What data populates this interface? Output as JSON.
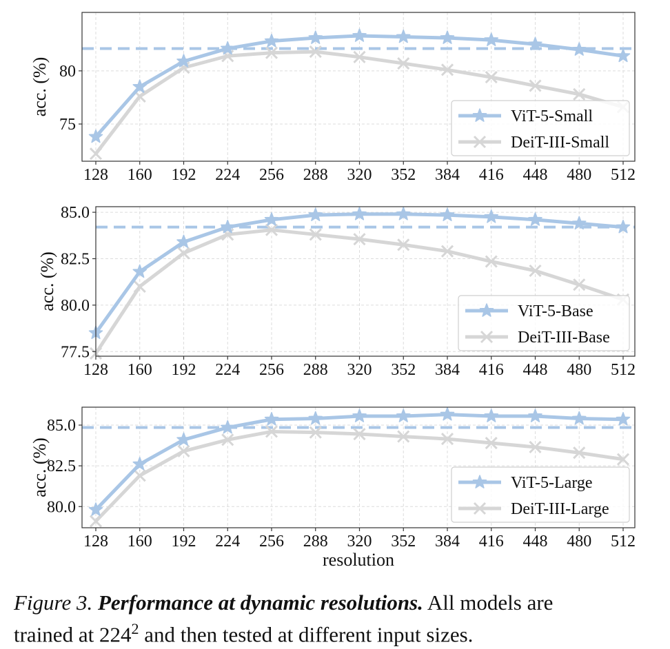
{
  "colors": {
    "vit": "#a9c6e6",
    "deit": "#d6d6d6",
    "baseline": "#a9c6e6",
    "grid": "#dcdcdc",
    "axis": "#333333"
  },
  "chart_data": [
    {
      "type": "line",
      "id": "small",
      "xlabel": "",
      "ylabel": "acc. (%)",
      "x": [
        128,
        160,
        192,
        224,
        256,
        288,
        320,
        352,
        384,
        416,
        448,
        480,
        512
      ],
      "ylim": [
        71.5,
        85.5
      ],
      "yticks": [
        75,
        80
      ],
      "baseline": 82.1,
      "legend_position": "bottom-right",
      "series": [
        {
          "name": "ViT-5-Small",
          "marker": "star",
          "values": [
            73.8,
            78.5,
            80.9,
            82.1,
            82.8,
            83.1,
            83.3,
            83.2,
            83.1,
            82.9,
            82.5,
            82.0,
            81.4
          ]
        },
        {
          "name": "DeiT-III-Small",
          "marker": "x",
          "values": [
            72.2,
            77.6,
            80.3,
            81.4,
            81.7,
            81.8,
            81.3,
            80.7,
            80.1,
            79.4,
            78.6,
            77.8,
            76.6
          ]
        }
      ]
    },
    {
      "type": "line",
      "id": "base",
      "xlabel": "",
      "ylabel": "acc. (%)",
      "x": [
        128,
        160,
        192,
        224,
        256,
        288,
        320,
        352,
        384,
        416,
        448,
        480,
        512
      ],
      "ylim": [
        77.25,
        85.3
      ],
      "yticks": [
        77.5,
        80.0,
        82.5,
        85.0
      ],
      "baseline": 84.2,
      "legend_position": "bottom-right",
      "series": [
        {
          "name": "ViT-5-Base",
          "marker": "star",
          "values": [
            78.5,
            81.8,
            83.4,
            84.2,
            84.6,
            84.85,
            84.9,
            84.9,
            84.85,
            84.75,
            84.6,
            84.4,
            84.2
          ]
        },
        {
          "name": "DeiT-III-Base",
          "marker": "x",
          "values": [
            77.4,
            81.0,
            82.8,
            83.8,
            84.05,
            83.8,
            83.55,
            83.25,
            82.9,
            82.35,
            81.85,
            81.1,
            80.3
          ]
        }
      ]
    },
    {
      "type": "line",
      "id": "large",
      "xlabel": "resolution",
      "ylabel": "acc. (%)",
      "x": [
        128,
        160,
        192,
        224,
        256,
        288,
        320,
        352,
        384,
        416,
        448,
        480,
        512
      ],
      "ylim": [
        78.7,
        86.1
      ],
      "yticks": [
        80.0,
        82.5,
        85.0
      ],
      "baseline": 84.85,
      "legend_position": "bottom-right",
      "series": [
        {
          "name": "ViT-5-Large",
          "marker": "star",
          "values": [
            79.8,
            82.6,
            84.1,
            84.85,
            85.35,
            85.4,
            85.55,
            85.55,
            85.65,
            85.55,
            85.55,
            85.4,
            85.35
          ]
        },
        {
          "name": "DeiT-III-Large",
          "marker": "x",
          "values": [
            79.1,
            81.9,
            83.4,
            84.1,
            84.6,
            84.55,
            84.45,
            84.3,
            84.15,
            83.9,
            83.65,
            83.3,
            82.9
          ]
        }
      ]
    }
  ],
  "caption": {
    "label": "Figure 3.",
    "title": "Performance at dynamic resolutions.",
    "text_line1": "All models are",
    "text_line2_pre": "trained at 224",
    "superscript": "2",
    "text_line2_post": " and then tested at different input sizes."
  }
}
